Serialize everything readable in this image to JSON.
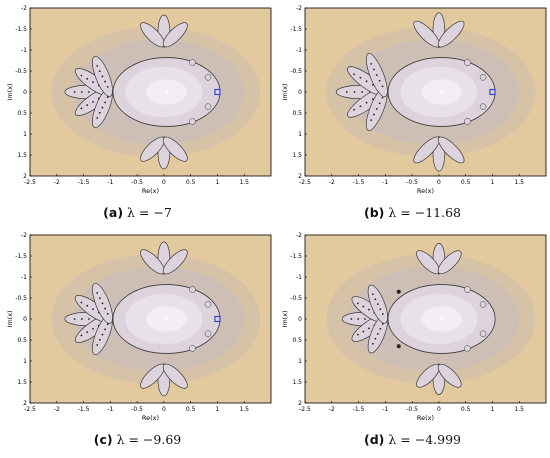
{
  "figure": {
    "x_label": "Re(x)",
    "y_label": "Im(x)",
    "x_ticks": [
      "-2.5",
      "-2",
      "-1.5",
      "-1",
      "-0.5",
      "0",
      "0.5",
      "1",
      "1.5"
    ],
    "y_ticks": [
      "-2",
      "-1.5",
      "-1",
      "-0.5",
      "0",
      "0.5",
      "1",
      "1.5",
      "2"
    ],
    "colors": {
      "background": "#E3C99E",
      "band1": "#D6C2A6",
      "band2": "#CDBFB6",
      "inner": "#DDD3DC",
      "core": "#E9E1E8",
      "center": "#F3EEF3",
      "boundary": "#3a3a3a",
      "marker": "#2a3bd0",
      "frame": "#000000"
    },
    "panels": [
      {
        "id": "a",
        "letter": "(a)",
        "lambda_text": "λ = −7",
        "lambda": -7,
        "marker": true,
        "bump": false
      },
      {
        "id": "b",
        "letter": "(b)",
        "lambda_text": "λ = −11.68",
        "lambda": -11.68,
        "marker": true,
        "bump": false
      },
      {
        "id": "c",
        "letter": "(c)",
        "lambda_text": "λ = −9.69",
        "lambda": -9.69,
        "marker": true,
        "bump": false
      },
      {
        "id": "d",
        "letter": "(d)",
        "lambda_text": "λ = −4.999",
        "lambda": -4.999,
        "marker": false,
        "bump": true
      }
    ]
  }
}
